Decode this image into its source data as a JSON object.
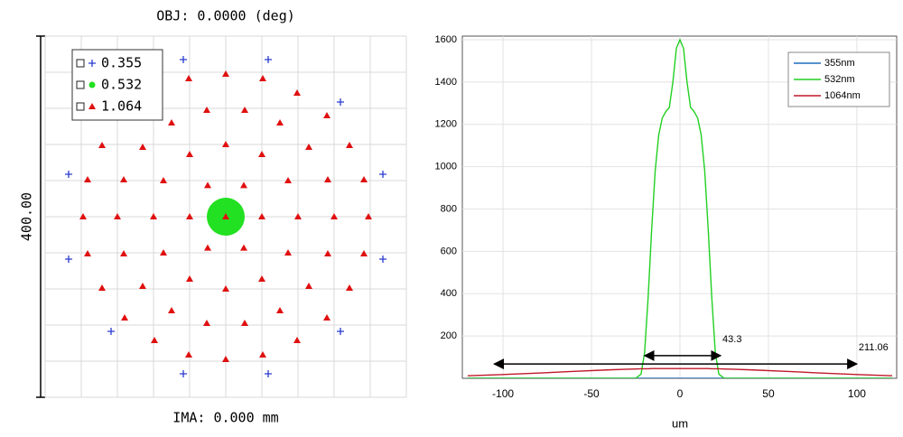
{
  "chart_data": [
    {
      "type": "scatter",
      "title": "OBJ: 0.0000 (deg)",
      "x_label": "IMA: 0.000 mm",
      "y_label": "400.00",
      "xlim": [
        -200,
        200
      ],
      "ylim": [
        -200,
        200
      ],
      "grid": true,
      "legend": "upper left",
      "series": [
        {
          "name": "0.355",
          "color": "#2a3ad0",
          "marker": "plus",
          "x": [
            174,
            127,
            47,
            -47,
            -127,
            -174,
            -174,
            -127,
            -47,
            47,
            127,
            174
          ],
          "values": [
            47,
            127,
            174,
            174,
            127,
            47,
            -47,
            -127,
            -174,
            -174,
            -127,
            -47
          ]
        },
        {
          "name": "0.532",
          "color": "#22e022",
          "marker": "disc",
          "x": [
            0
          ],
          "values": [
            0
          ]
        },
        {
          "name": "1.064",
          "color": "#e01010",
          "marker": "triangle",
          "x": [
            0,
            40,
            20,
            -20,
            -40,
            -20,
            20,
            80,
            69,
            40,
            0,
            -40,
            -69,
            -80,
            -69,
            -40,
            0,
            40,
            69,
            120,
            113,
            92,
            60,
            21,
            -21,
            -60,
            -92,
            -113,
            -120,
            -113,
            -92,
            -60,
            -21,
            21,
            60,
            92,
            113,
            158,
            153,
            137,
            112,
            79,
            41,
            0,
            -41,
            -79,
            -112,
            -137,
            -153,
            -158,
            -153,
            -137,
            -112,
            -79,
            -41,
            0,
            41,
            79,
            112,
            137,
            153
          ],
          "values": [
            0,
            0,
            34.6,
            34.6,
            0,
            -34.6,
            -34.6,
            0,
            40,
            69,
            80,
            69,
            40,
            0,
            -40,
            -69,
            -80,
            -69,
            -40,
            0,
            41,
            77,
            104,
            118,
            118,
            104,
            77,
            41,
            0,
            -41,
            -77,
            -104,
            -118,
            -118,
            -104,
            -77,
            -41,
            0,
            41,
            79,
            112,
            137,
            153,
            158,
            153,
            137,
            112,
            79,
            41,
            0,
            -41,
            -79,
            -112,
            -137,
            -153,
            -158,
            -153,
            -137,
            -112,
            -79,
            -41
          ]
        }
      ]
    },
    {
      "type": "line",
      "x_label": "um",
      "xlim": [
        -123,
        122.5
      ],
      "ylim": [
        0,
        1600
      ],
      "xticks": [
        -100,
        -50,
        0,
        50,
        100
      ],
      "yticks": [
        200,
        400,
        600,
        800,
        1000,
        1200,
        1400,
        1600
      ],
      "grid": true,
      "legend": "upper right",
      "x": [
        -120,
        -100,
        -80,
        -60,
        -40,
        -30,
        -25,
        -22,
        -20,
        -18,
        -16,
        -14,
        -12,
        -10,
        -8,
        -6,
        -4,
        -2,
        0,
        2,
        4,
        6,
        8,
        10,
        12,
        14,
        16,
        18,
        20,
        22,
        25,
        30,
        40,
        60,
        80,
        100,
        120
      ],
      "series": [
        {
          "name": "355nm",
          "color": "#1f6fc0",
          "values": [
            0,
            0,
            0,
            0,
            0,
            0,
            0,
            0,
            0,
            0,
            0,
            0,
            0,
            0,
            0,
            0,
            0,
            0,
            0,
            0,
            0,
            0,
            0,
            0,
            0,
            0,
            0,
            0,
            0,
            0,
            0,
            0,
            0,
            0,
            0,
            0,
            0
          ]
        },
        {
          "name": "532nm",
          "color": "#22d022",
          "values": [
            0,
            0,
            0,
            0,
            0,
            0,
            0,
            20,
            120,
            380,
            700,
            980,
            1150,
            1230,
            1260,
            1280,
            1400,
            1560,
            1600,
            1560,
            1400,
            1280,
            1260,
            1230,
            1150,
            980,
            700,
            380,
            120,
            20,
            0,
            0,
            0,
            0,
            0,
            0,
            0
          ]
        },
        {
          "name": "1064nm",
          "color": "#c0182a",
          "values": [
            12,
            18,
            25,
            33,
            40,
            43,
            44,
            45,
            45,
            45,
            46,
            46,
            46,
            46,
            46,
            46,
            46,
            46,
            46,
            46,
            46,
            46,
            46,
            46,
            46,
            46,
            46,
            45,
            45,
            45,
            44,
            43,
            40,
            33,
            25,
            18,
            12
          ]
        }
      ],
      "annotations": [
        {
          "text": "43.3",
          "x": [
            -20,
            23
          ],
          "y": 107
        },
        {
          "text": "211.06",
          "x": [
            -105,
            100
          ],
          "y": 68
        }
      ]
    }
  ]
}
